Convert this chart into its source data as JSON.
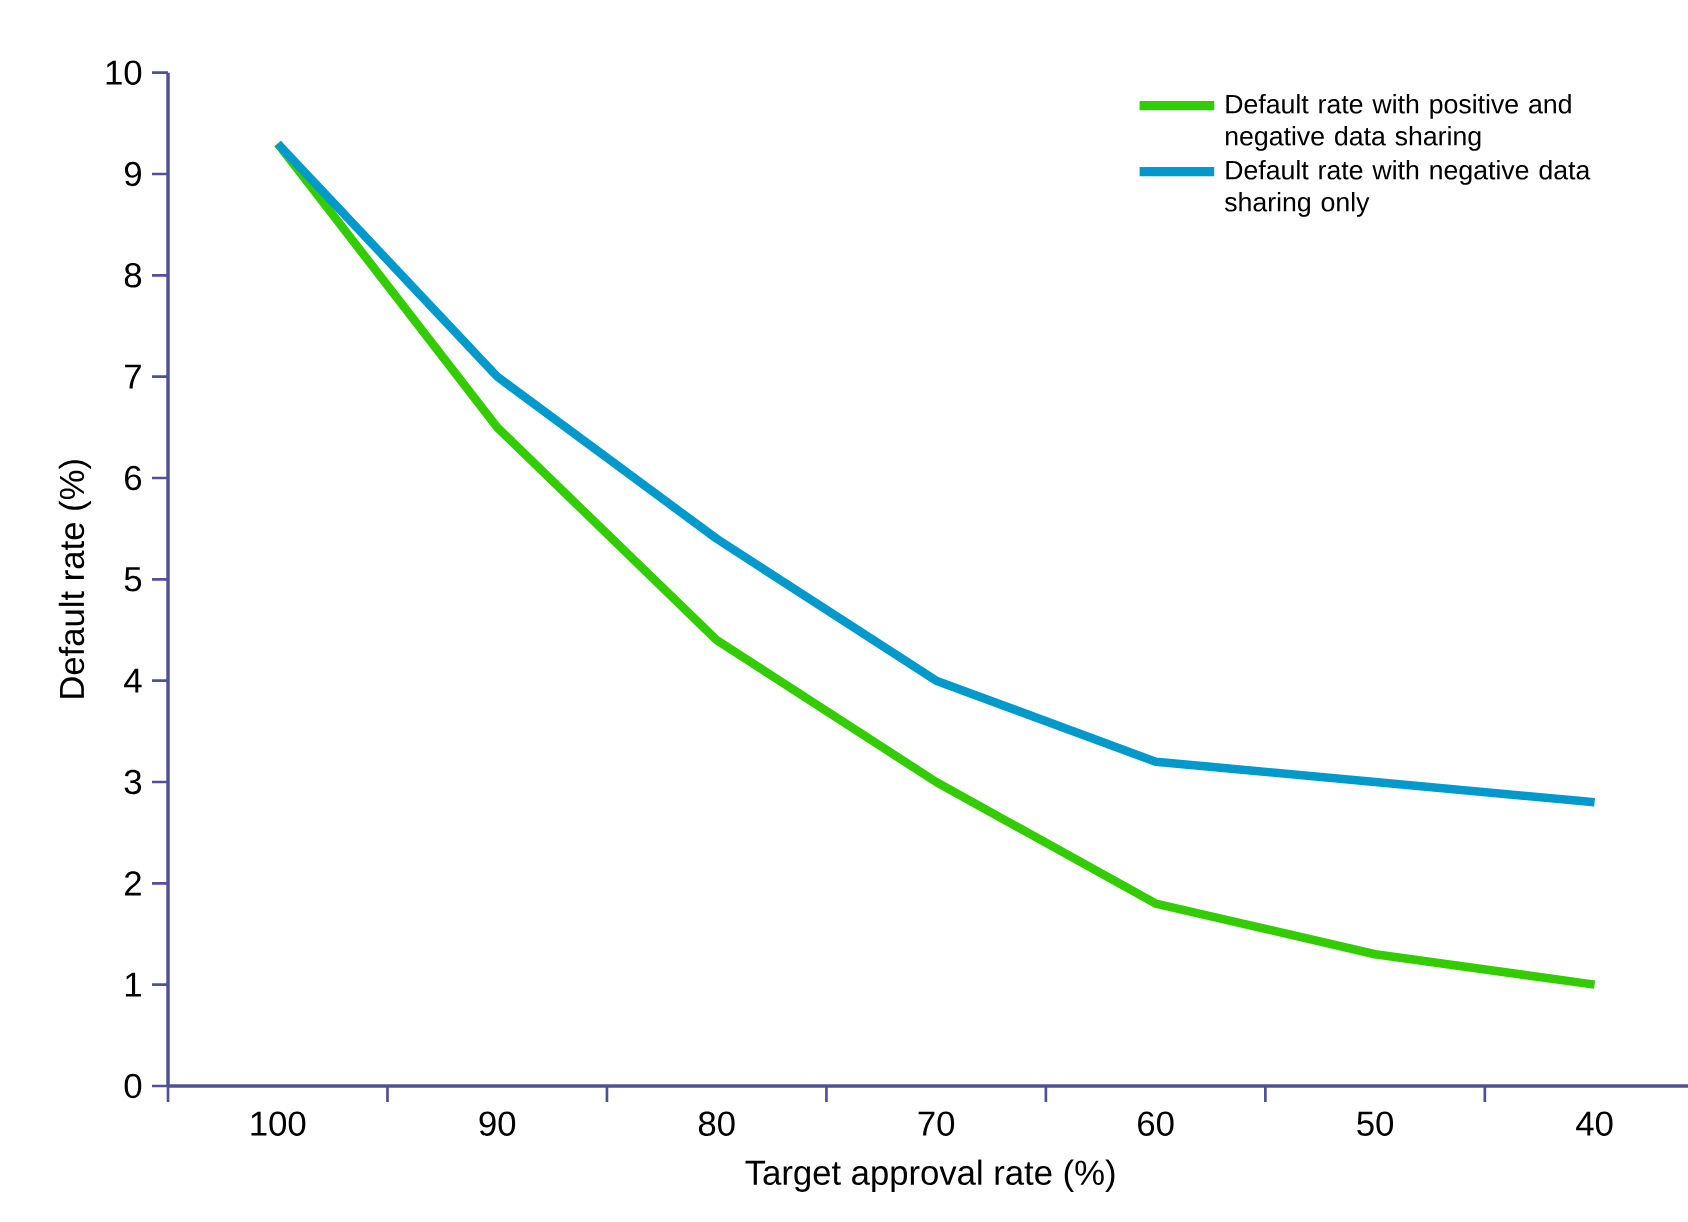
{
  "chart_data": {
    "type": "line",
    "xlabel": "Target approval rate (%)",
    "ylabel": "Default rate (%)",
    "categories": [
      "100",
      "90",
      "80",
      "70",
      "60",
      "50",
      "40"
    ],
    "ylim": [
      0,
      10
    ],
    "yticks": [
      0,
      1,
      2,
      3,
      4,
      5,
      6,
      7,
      8,
      9,
      10
    ],
    "series": [
      {
        "name": "Default rate with positive and negative data sharing",
        "color": "#33cc00",
        "values": [
          9.3,
          6.5,
          4.4,
          3.0,
          1.8,
          1.3,
          1.0
        ]
      },
      {
        "name": "Default rate with negative data sharing only",
        "color": "#0099cc",
        "values": [
          9.3,
          7.0,
          5.4,
          4.0,
          3.2,
          3.0,
          2.8
        ]
      }
    ],
    "legend": "top right",
    "grid": false,
    "marker": "none",
    "line_style": "solid"
  }
}
